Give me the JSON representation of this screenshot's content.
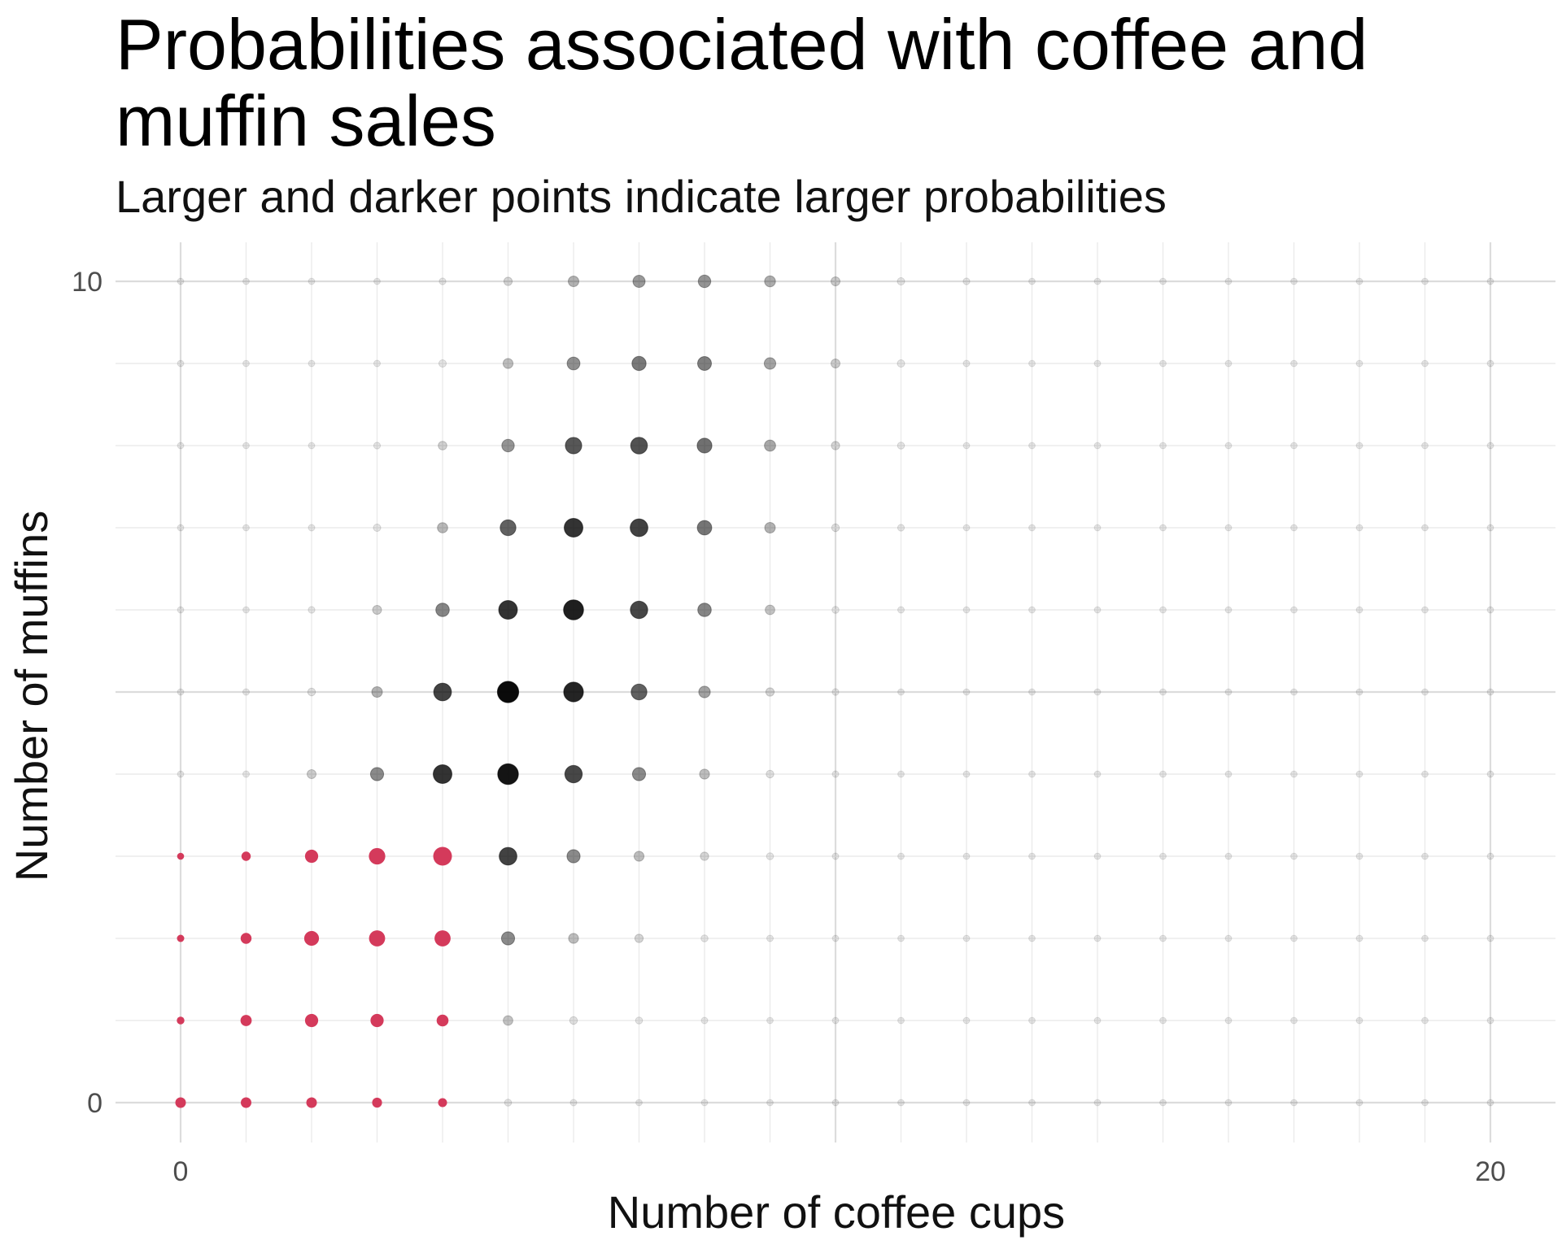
{
  "chart_data": {
    "type": "scatter",
    "title": "Probabilities associated with coffee and muffin sales",
    "subtitle": "Larger and darker points indicate larger probabilities",
    "xlabel": "Number of coffee cups",
    "ylabel": "Number of muffins",
    "x_ticks": [
      "0",
      "20"
    ],
    "y_ticks": [
      "0",
      "10"
    ],
    "xlim": [
      0,
      20
    ],
    "ylim": [
      0,
      10
    ],
    "grid": true,
    "highlight_color": "#d43a5b",
    "point_color": "#000000",
    "rows": [
      {
        "y": 0,
        "p": [
          0.3,
          0.3,
          0.3,
          0.26,
          0.2,
          0.08,
          0.05,
          0.04,
          0.04,
          0.04,
          0.04,
          0.04,
          0.04,
          0.04,
          0.04,
          0.04,
          0.04,
          0.04,
          0.04,
          0.04,
          0.04
        ]
      },
      {
        "y": 1,
        "p": [
          0.12,
          0.34,
          0.46,
          0.46,
          0.38,
          0.24,
          0.12,
          0.08,
          0.05,
          0.04,
          0.04,
          0.04,
          0.04,
          0.04,
          0.04,
          0.04,
          0.04,
          0.04,
          0.04,
          0.04,
          0.04
        ]
      },
      {
        "y": 2,
        "p": [
          0.1,
          0.32,
          0.56,
          0.64,
          0.64,
          0.46,
          0.26,
          0.16,
          0.08,
          0.05,
          0.04,
          0.04,
          0.04,
          0.04,
          0.04,
          0.04,
          0.04,
          0.04,
          0.04,
          0.04,
          0.04
        ]
      },
      {
        "y": 3,
        "p": [
          0.08,
          0.22,
          0.46,
          0.66,
          0.8,
          0.74,
          0.46,
          0.26,
          0.16,
          0.08,
          0.05,
          0.04,
          0.04,
          0.04,
          0.04,
          0.04,
          0.04,
          0.04,
          0.04,
          0.04,
          0.04
        ]
      },
      {
        "y": 4,
        "p": [
          0.04,
          0.05,
          0.2,
          0.46,
          0.8,
          0.92,
          0.72,
          0.46,
          0.26,
          0.12,
          0.05,
          0.04,
          0.04,
          0.04,
          0.04,
          0.04,
          0.04,
          0.04,
          0.04,
          0.04,
          0.04
        ]
      },
      {
        "y": 5,
        "p": [
          0.04,
          0.05,
          0.12,
          0.3,
          0.74,
          0.96,
          0.86,
          0.62,
          0.36,
          0.16,
          0.06,
          0.04,
          0.04,
          0.04,
          0.04,
          0.04,
          0.04,
          0.04,
          0.04,
          0.04,
          0.04
        ]
      },
      {
        "y": 6,
        "p": [
          0.04,
          0.04,
          0.06,
          0.2,
          0.48,
          0.8,
          0.88,
          0.72,
          0.48,
          0.24,
          0.08,
          0.05,
          0.04,
          0.04,
          0.04,
          0.04,
          0.04,
          0.04,
          0.04,
          0.04,
          0.04
        ]
      },
      {
        "y": 7,
        "p": [
          0.04,
          0.04,
          0.05,
          0.1,
          0.28,
          0.62,
          0.8,
          0.74,
          0.54,
          0.3,
          0.12,
          0.06,
          0.04,
          0.04,
          0.04,
          0.04,
          0.04,
          0.04,
          0.04,
          0.04,
          0.04
        ]
      },
      {
        "y": 8,
        "p": [
          0.04,
          0.04,
          0.04,
          0.06,
          0.18,
          0.42,
          0.66,
          0.68,
          0.56,
          0.34,
          0.16,
          0.08,
          0.04,
          0.04,
          0.04,
          0.04,
          0.04,
          0.04,
          0.04,
          0.04,
          0.04
        ]
      },
      {
        "y": 9,
        "p": [
          0.04,
          0.04,
          0.04,
          0.05,
          0.1,
          0.26,
          0.44,
          0.52,
          0.5,
          0.36,
          0.2,
          0.1,
          0.05,
          0.04,
          0.04,
          0.04,
          0.04,
          0.04,
          0.04,
          0.04,
          0.04
        ]
      },
      {
        "y": 10,
        "p": [
          0.04,
          0.04,
          0.04,
          0.04,
          0.06,
          0.16,
          0.3,
          0.4,
          0.42,
          0.32,
          0.2,
          0.1,
          0.06,
          0.04,
          0.04,
          0.04,
          0.04,
          0.04,
          0.04,
          0.04,
          0.04
        ]
      }
    ],
    "highlight_region": {
      "x_max": 4,
      "y_max": 3
    }
  }
}
